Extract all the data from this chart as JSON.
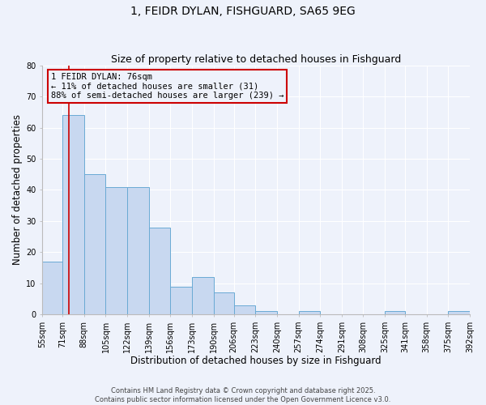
{
  "title": "1, FEIDR DYLAN, FISHGUARD, SA65 9EG",
  "subtitle": "Size of property relative to detached houses in Fishguard",
  "xlabel": "Distribution of detached houses by size in Fishguard",
  "ylabel": "Number of detached properties",
  "bin_edges": [
    55,
    71,
    88,
    105,
    122,
    139,
    156,
    173,
    190,
    206,
    223,
    240,
    257,
    274,
    291,
    308,
    325,
    341,
    358,
    375,
    392
  ],
  "bin_labels": [
    "55sqm",
    "71sqm",
    "88sqm",
    "105sqm",
    "122sqm",
    "139sqm",
    "156sqm",
    "173sqm",
    "190sqm",
    "206sqm",
    "223sqm",
    "240sqm",
    "257sqm",
    "274sqm",
    "291sqm",
    "308sqm",
    "325sqm",
    "341sqm",
    "358sqm",
    "375sqm",
    "392sqm"
  ],
  "counts": [
    17,
    64,
    45,
    41,
    41,
    28,
    9,
    12,
    7,
    3,
    1,
    0,
    1,
    0,
    0,
    0,
    1,
    0,
    0,
    1
  ],
  "bar_color": "#c8d8f0",
  "bar_edge_color": "#6aaad4",
  "property_value": 76,
  "vline_color": "#cc0000",
  "annotation_line1": "1 FEIDR DYLAN: 76sqm",
  "annotation_line2": "← 11% of detached houses are smaller (31)",
  "annotation_line3": "88% of semi-detached houses are larger (239) →",
  "annotation_box_edge_color": "#cc0000",
  "ylim": [
    0,
    80
  ],
  "yticks": [
    0,
    10,
    20,
    30,
    40,
    50,
    60,
    70,
    80
  ],
  "bg_color": "#eef2fb",
  "grid_color": "#ffffff",
  "footer1": "Contains HM Land Registry data © Crown copyright and database right 2025.",
  "footer2": "Contains public sector information licensed under the Open Government Licence v3.0.",
  "title_fontsize": 10,
  "subtitle_fontsize": 9,
  "axis_label_fontsize": 8.5,
  "tick_fontsize": 7,
  "annotation_fontsize": 7.5,
  "footer_fontsize": 6
}
